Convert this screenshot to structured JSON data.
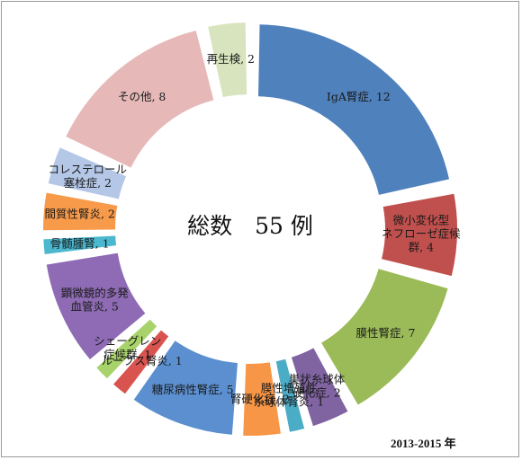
{
  "chart_data": {
    "type": "pie",
    "style": "exploded-donut",
    "total_label": "総数　55 例",
    "period_label": "2013-2015 年",
    "slices": [
      {
        "name": "IgA腎症",
        "value": 12,
        "color": "#4F81BD",
        "label_lines": [
          "IgA腎症, 12"
        ]
      },
      {
        "name": "微小変化型ネフローゼ症候群",
        "value": 4,
        "color": "#C0504D",
        "label_lines": [
          "微小変化型",
          "ネフローゼ症候",
          "群, 4"
        ]
      },
      {
        "name": "膜性腎症",
        "value": 7,
        "color": "#9BBB59",
        "label_lines": [
          "膜性腎症, 7"
        ]
      },
      {
        "name": "巣状糸球体硬化症",
        "value": 2,
        "color": "#8064A2",
        "label_lines": [
          "巣状糸球体",
          "硬化症, 2"
        ]
      },
      {
        "name": "膜性増殖性糸球体腎炎",
        "value": 1,
        "color": "#4BACC6",
        "label_lines": [
          "膜性増殖性",
          "糸球体腎炎, 1"
        ]
      },
      {
        "name": "腎硬化症",
        "value": 2,
        "color": "#F79646",
        "label_lines": [
          "腎硬化症, 2"
        ]
      },
      {
        "name": "糖尿病性腎症",
        "value": 5,
        "color": "#5B8FD0",
        "label_lines": [
          "糖尿病性腎症, 5"
        ]
      },
      {
        "name": "ループス腎炎",
        "value": 1,
        "color": "#D9534F",
        "label_lines": [
          "ループス腎炎, 1"
        ]
      },
      {
        "name": "シェーグレン症候群",
        "value": 1,
        "color": "#A8D26A",
        "label_lines": [
          "シェーグレン",
          "症候群, 1"
        ]
      },
      {
        "name": "顕微鏡的多発血管炎",
        "value": 5,
        "color": "#8E6BB4",
        "label_lines": [
          "顕微鏡的多発",
          "血管炎, 5"
        ]
      },
      {
        "name": "骨髄腫腎",
        "value": 1,
        "color": "#4BB8CF",
        "label_lines": [
          "骨髄腫腎, 1"
        ]
      },
      {
        "name": "間質性腎炎",
        "value": 2,
        "color": "#F79A4A",
        "label_lines": [
          "間質性腎炎, 2"
        ]
      },
      {
        "name": "コレステロール塞栓症",
        "value": 2,
        "color": "#B4C7E7",
        "label_lines": [
          "コレステロール",
          "塞栓症, 2"
        ]
      },
      {
        "name": "その他",
        "value": 8,
        "color": "#E6B9B8",
        "label_lines": [
          "その他, 8"
        ]
      },
      {
        "name": "再生検",
        "value": 2,
        "color": "#D7E4BD",
        "label_lines": [
          "再生検, 2"
        ]
      }
    ]
  }
}
